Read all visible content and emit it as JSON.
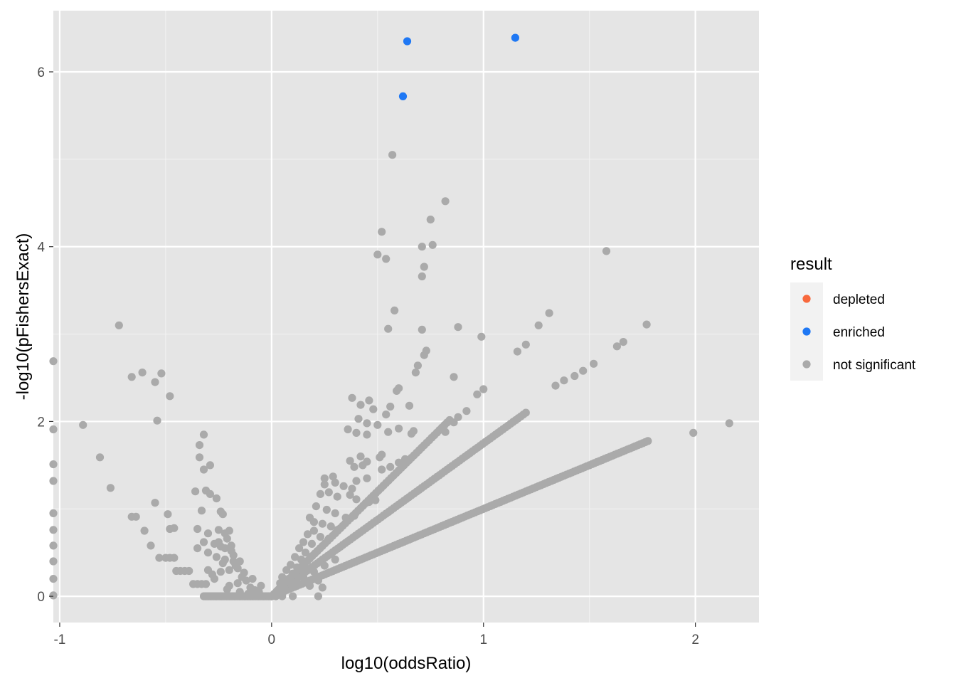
{
  "chart_data": {
    "type": "scatter",
    "title": "",
    "xlabel": "log10(oddsRatio)",
    "ylabel": "-log10(pFishersExact)",
    "xlim": [
      -1.03,
      2.3
    ],
    "ylim": [
      -0.3,
      6.7
    ],
    "x_ticks": [
      -1,
      0,
      1,
      2
    ],
    "x_tick_labels": [
      "-1",
      "0",
      "1",
      "2"
    ],
    "y_ticks": [
      0,
      2,
      4,
      6
    ],
    "y_tick_labels": [
      "0",
      "2",
      "4",
      "6"
    ],
    "grid": true,
    "legend": {
      "title": "result",
      "position": "right",
      "entries": [
        {
          "label": "depleted",
          "color": "#F8693D"
        },
        {
          "label": "enriched",
          "color": "#1F78F4"
        },
        {
          "label": "not significant",
          "color": "#AAAAAA"
        }
      ]
    },
    "colors": {
      "panel_background": "#E5E5E5",
      "grid_major": "#FFFFFF",
      "grid_minor": "#F2F2F2",
      "legend_key_background": "#F2F2F2"
    },
    "series": [
      {
        "name": "enriched",
        "color": "#1F78F4",
        "points": [
          [
            0.64,
            6.35
          ],
          [
            1.15,
            6.39
          ],
          [
            0.62,
            5.72
          ]
        ]
      },
      {
        "name": "depleted",
        "color": "#F8693D",
        "points": []
      },
      {
        "name": "not significant",
        "color": "#AAAAAA",
        "bands": [
          {
            "x_start": 0.0,
            "x_end": 1.78,
            "slope": 1.0,
            "step": 0.012
          },
          {
            "x_start": 0.0,
            "x_end": 1.2,
            "slope": 1.75,
            "step": 0.012
          },
          {
            "x_start": 0.0,
            "x_end": 0.84,
            "slope": 2.4,
            "step": 0.012
          },
          {
            "x_start": -0.32,
            "x_end": 0.0,
            "slope": 0.0,
            "step": 0.006
          }
        ],
        "points": [
          [
            0.57,
            5.05
          ],
          [
            0.82,
            4.52
          ],
          [
            0.75,
            4.31
          ],
          [
            0.52,
            4.17
          ],
          [
            0.76,
            4.02
          ],
          [
            0.71,
            4.0
          ],
          [
            0.5,
            3.91
          ],
          [
            0.54,
            3.86
          ],
          [
            1.58,
            3.95
          ],
          [
            0.72,
            3.77
          ],
          [
            0.71,
            3.66
          ],
          [
            0.58,
            3.27
          ],
          [
            1.31,
            3.24
          ],
          [
            0.55,
            3.06
          ],
          [
            0.71,
            3.05
          ],
          [
            0.88,
            3.08
          ],
          [
            1.26,
            3.1
          ],
          [
            1.77,
            3.11
          ],
          [
            -0.72,
            3.1
          ],
          [
            0.99,
            2.97
          ],
          [
            1.2,
            2.88
          ],
          [
            1.16,
            2.8
          ],
          [
            1.66,
            2.91
          ],
          [
            1.63,
            2.86
          ],
          [
            0.73,
            2.81
          ],
          [
            0.72,
            2.76
          ],
          [
            0.69,
            2.64
          ],
          [
            0.68,
            2.56
          ],
          [
            0.86,
            2.51
          ],
          [
            1.52,
            2.66
          ],
          [
            1.47,
            2.58
          ],
          [
            1.43,
            2.52
          ],
          [
            1.38,
            2.47
          ],
          [
            1.34,
            2.41
          ],
          [
            0.6,
            2.38
          ],
          [
            0.59,
            2.35
          ],
          [
            1.0,
            2.37
          ],
          [
            0.97,
            2.31
          ],
          [
            0.38,
            2.27
          ],
          [
            0.46,
            2.24
          ],
          [
            0.42,
            2.19
          ],
          [
            0.48,
            2.14
          ],
          [
            0.56,
            2.17
          ],
          [
            0.65,
            2.18
          ],
          [
            0.54,
            2.08
          ],
          [
            0.41,
            2.03
          ],
          [
            0.45,
            1.98
          ],
          [
            0.5,
            1.96
          ],
          [
            0.36,
            1.91
          ],
          [
            0.4,
            1.87
          ],
          [
            0.45,
            1.85
          ],
          [
            0.55,
            1.88
          ],
          [
            0.6,
            1.92
          ],
          [
            0.67,
            1.89
          ],
          [
            0.66,
            1.86
          ],
          [
            0.82,
            1.88
          ],
          [
            0.86,
            1.99
          ],
          [
            0.88,
            2.05
          ],
          [
            0.92,
            2.12
          ],
          [
            0.37,
            1.55
          ],
          [
            0.42,
            1.6
          ],
          [
            0.45,
            1.54
          ],
          [
            0.52,
            1.62
          ],
          [
            0.56,
            1.48
          ],
          [
            0.6,
            1.53
          ],
          [
            0.63,
            1.57
          ],
          [
            0.51,
            1.59
          ],
          [
            0.39,
            1.48
          ],
          [
            0.43,
            1.5
          ],
          [
            0.25,
            1.35
          ],
          [
            0.29,
            1.37
          ],
          [
            0.25,
            1.28
          ],
          [
            0.3,
            1.3
          ],
          [
            0.34,
            1.26
          ],
          [
            0.38,
            1.23
          ],
          [
            0.4,
            1.32
          ],
          [
            0.45,
            1.35
          ],
          [
            0.52,
            1.45
          ],
          [
            0.23,
            1.17
          ],
          [
            0.27,
            1.19
          ],
          [
            0.31,
            1.14
          ],
          [
            0.37,
            1.16
          ],
          [
            0.4,
            1.11
          ],
          [
            0.46,
            1.08
          ],
          [
            0.49,
            1.1
          ],
          [
            0.21,
            1.03
          ],
          [
            0.26,
            0.99
          ],
          [
            0.3,
            0.95
          ],
          [
            0.35,
            0.9
          ],
          [
            0.39,
            0.92
          ],
          [
            0.18,
            0.9
          ],
          [
            0.2,
            0.85
          ],
          [
            0.24,
            0.83
          ],
          [
            0.28,
            0.8
          ],
          [
            0.31,
            0.76
          ],
          [
            0.2,
            0.75
          ],
          [
            0.17,
            0.71
          ],
          [
            0.23,
            0.68
          ],
          [
            0.27,
            0.66
          ],
          [
            0.15,
            0.62
          ],
          [
            0.19,
            0.6
          ],
          [
            0.13,
            0.55
          ],
          [
            0.16,
            0.5
          ],
          [
            0.11,
            0.45
          ],
          [
            0.14,
            0.42
          ],
          [
            0.09,
            0.36
          ],
          [
            0.12,
            0.33
          ],
          [
            0.07,
            0.3
          ],
          [
            0.1,
            0.26
          ],
          [
            0.05,
            0.22
          ],
          [
            0.08,
            0.2
          ],
          [
            0.04,
            0.15
          ],
          [
            0.06,
            0.1
          ],
          [
            0.03,
            0.07
          ],
          [
            0.1,
            0.14
          ],
          [
            0.15,
            0.22
          ],
          [
            0.2,
            0.28
          ],
          [
            0.25,
            0.35
          ],
          [
            0.3,
            0.42
          ],
          [
            0.22,
            0.18
          ],
          [
            0.18,
            0.12
          ],
          [
            0.24,
            0.1
          ],
          [
            0.22,
            0.0
          ],
          [
            0.1,
            0.0
          ],
          [
            0.05,
            0.0
          ],
          [
            0.02,
            0.0
          ],
          [
            1.99,
            1.87
          ],
          [
            2.16,
            1.98
          ],
          [
            -1.03,
            2.69
          ],
          [
            -1.03,
            1.91
          ],
          [
            -1.03,
            1.51
          ],
          [
            -1.03,
            1.32
          ],
          [
            -1.03,
            0.95
          ],
          [
            -1.03,
            0.76
          ],
          [
            -1.03,
            0.58
          ],
          [
            -1.03,
            0.4
          ],
          [
            -1.03,
            0.2
          ],
          [
            -1.03,
            0.01
          ],
          [
            -0.89,
            1.96
          ],
          [
            -0.81,
            1.59
          ],
          [
            -0.76,
            1.24
          ],
          [
            -0.66,
            2.51
          ],
          [
            -0.61,
            2.56
          ],
          [
            -0.55,
            2.45
          ],
          [
            -0.52,
            2.55
          ],
          [
            -0.48,
            2.29
          ],
          [
            -0.54,
            2.01
          ],
          [
            -0.66,
            0.91
          ],
          [
            -0.64,
            0.91
          ],
          [
            -0.6,
            0.75
          ],
          [
            -0.57,
            0.58
          ],
          [
            -0.55,
            1.07
          ],
          [
            -0.49,
            0.94
          ],
          [
            -0.48,
            0.77
          ],
          [
            -0.46,
            0.78
          ],
          [
            -0.53,
            0.44
          ],
          [
            -0.5,
            0.44
          ],
          [
            -0.48,
            0.44
          ],
          [
            -0.46,
            0.44
          ],
          [
            -0.45,
            0.29
          ],
          [
            -0.43,
            0.29
          ],
          [
            -0.41,
            0.29
          ],
          [
            -0.39,
            0.29
          ],
          [
            -0.37,
            0.14
          ],
          [
            -0.35,
            0.14
          ],
          [
            -0.33,
            0.14
          ],
          [
            -0.31,
            0.14
          ],
          [
            -0.36,
            1.2
          ],
          [
            -0.34,
            1.59
          ],
          [
            -0.34,
            1.73
          ],
          [
            -0.32,
            1.85
          ],
          [
            -0.32,
            1.45
          ],
          [
            -0.29,
            1.5
          ],
          [
            -0.31,
            1.21
          ],
          [
            -0.29,
            1.17
          ],
          [
            -0.26,
            1.12
          ],
          [
            -0.33,
            0.98
          ],
          [
            -0.24,
            0.97
          ],
          [
            -0.23,
            0.94
          ],
          [
            -0.35,
            0.77
          ],
          [
            -0.3,
            0.72
          ],
          [
            -0.25,
            0.76
          ],
          [
            -0.2,
            0.75
          ],
          [
            -0.22,
            0.72
          ],
          [
            -0.32,
            0.62
          ],
          [
            -0.27,
            0.6
          ],
          [
            -0.24,
            0.57
          ],
          [
            -0.19,
            0.52
          ],
          [
            -0.35,
            0.55
          ],
          [
            -0.3,
            0.5
          ],
          [
            -0.26,
            0.45
          ],
          [
            -0.22,
            0.42
          ],
          [
            -0.18,
            0.4
          ],
          [
            -0.16,
            0.32
          ],
          [
            -0.2,
            0.3
          ],
          [
            -0.24,
            0.28
          ],
          [
            -0.28,
            0.25
          ],
          [
            -0.14,
            0.22
          ],
          [
            -0.12,
            0.18
          ],
          [
            -0.16,
            0.15
          ],
          [
            -0.2,
            0.12
          ],
          [
            -0.1,
            0.1
          ],
          [
            -0.08,
            0.07
          ],
          [
            -0.06,
            0.05
          ],
          [
            -0.23,
            0.38
          ],
          [
            -0.17,
            0.35
          ],
          [
            -0.13,
            0.27
          ],
          [
            -0.09,
            0.2
          ],
          [
            -0.05,
            0.12
          ],
          [
            -0.3,
            0.3
          ],
          [
            -0.27,
            0.2
          ],
          [
            -0.21,
            0.08
          ],
          [
            -0.15,
            0.05
          ],
          [
            -0.11,
            0.03
          ],
          [
            -0.25,
            0.62
          ],
          [
            -0.22,
            0.55
          ],
          [
            -0.18,
            0.47
          ],
          [
            -0.15,
            0.4
          ],
          [
            -0.21,
            0.66
          ],
          [
            -0.19,
            0.58
          ]
        ]
      }
    ]
  }
}
